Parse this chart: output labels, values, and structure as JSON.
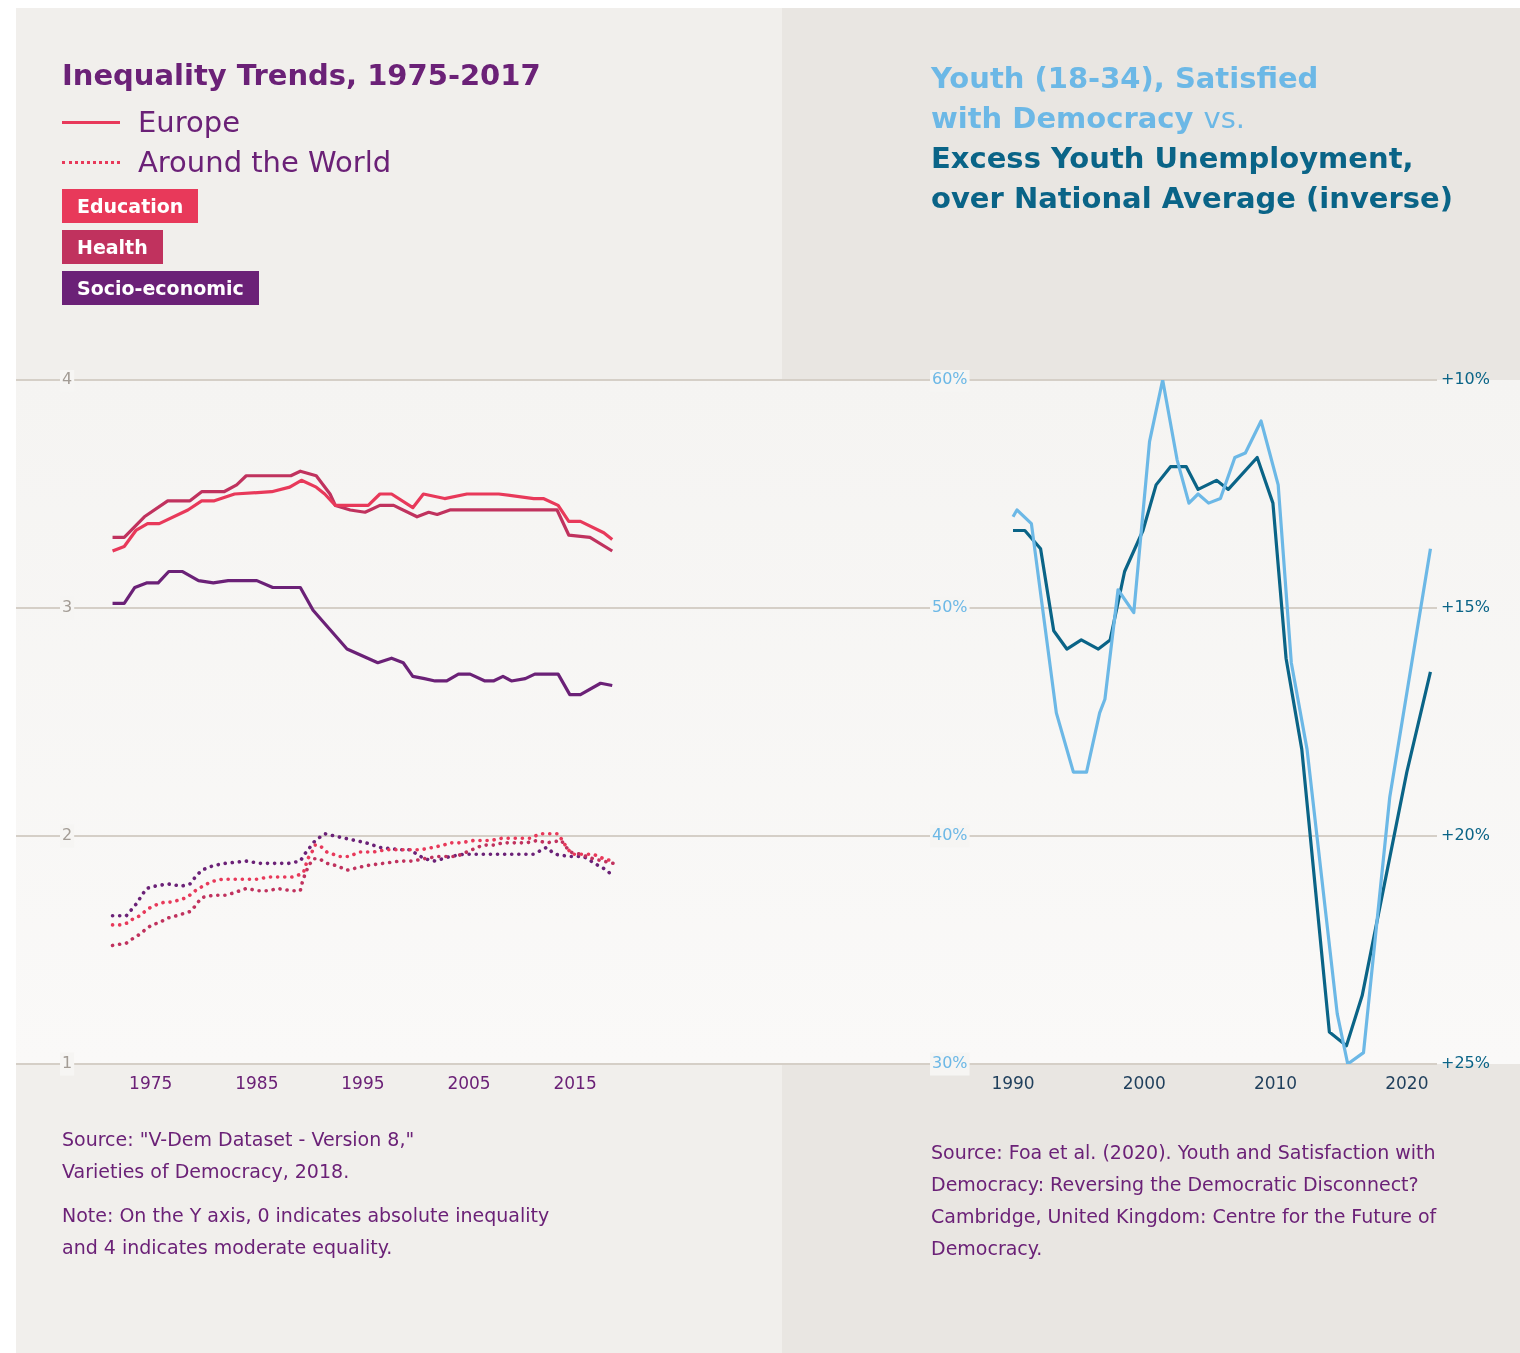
{
  "chart_data": [
    {
      "type": "line",
      "title": "Inequality Trends, 1975-2017",
      "xlim": [
        1962.3,
        2034.5
      ],
      "xticks": [
        1975,
        1985,
        1995,
        2005,
        2015
      ],
      "ylim": [
        1,
        4
      ],
      "yticks": [
        1,
        2,
        3,
        4
      ],
      "grid": "y",
      "legend": "top left",
      "series": [
        {
          "name": "Education",
          "color": "#e8395a",
          "line_style": "solid",
          "x": [
            1971.4,
            1972.5,
            1973.6,
            1974.7,
            1975.8,
            1978.5,
            1979.8,
            1981.0,
            1982.9,
            1986.4,
            1988.1,
            1989.2,
            1990.6,
            1991.4,
            1992.4,
            1995.5,
            1996.6,
            1997.7,
            1999.7,
            2000.7,
            2002.7,
            2004.8,
            2007.8,
            2011.1,
            2012.0,
            2013.4,
            2014.4,
            2015.5,
            2017.7,
            2018.5
          ],
          "values": [
            3.25,
            3.27,
            3.34,
            3.37,
            3.37,
            3.43,
            3.47,
            3.47,
            3.5,
            3.51,
            3.53,
            3.56,
            3.53,
            3.5,
            3.45,
            3.45,
            3.5,
            3.5,
            3.44,
            3.5,
            3.48,
            3.5,
            3.5,
            3.48,
            3.48,
            3.45,
            3.38,
            3.38,
            3.33,
            3.3
          ]
        },
        {
          "name": "Health",
          "color": "#c0325e",
          "line_style": "solid",
          "x": [
            1971.4,
            1972.5,
            1974.4,
            1976.6,
            1978.7,
            1979.8,
            1981.9,
            1983.1,
            1984.0,
            1988.2,
            1989.1,
            1990.6,
            1991.9,
            1992.4,
            1993.8,
            1995.2,
            1996.6,
            1997.9,
            2000.1,
            2001.2,
            2002.0,
            2003.2,
            2006.0,
            2013.3,
            2014.4,
            2016.4,
            2018.5
          ],
          "values": [
            3.31,
            3.31,
            3.4,
            3.47,
            3.47,
            3.51,
            3.51,
            3.54,
            3.58,
            3.58,
            3.6,
            3.58,
            3.5,
            3.45,
            3.43,
            3.42,
            3.45,
            3.45,
            3.4,
            3.42,
            3.41,
            3.43,
            3.43,
            3.43,
            3.32,
            3.31,
            3.25
          ]
        },
        {
          "name": "Socio-economic",
          "color": "#6b2177",
          "line_style": "solid",
          "x": [
            1971.4,
            1972.5,
            1973.5,
            1974.6,
            1975.7,
            1976.7,
            1978.0,
            1979.5,
            1980.9,
            1982.3,
            1985.0,
            1986.5,
            1989.1,
            1990.3,
            1993.5,
            1996.4,
            1997.7,
            1998.8,
            1999.7,
            2000.8,
            2001.8,
            2002.9,
            2004.0,
            2005.1,
            2006.5,
            2007.3,
            2008.2,
            2009.0,
            2010.3,
            2011.2,
            2013.4,
            2014.5,
            2015.5,
            2017.4,
            2018.5
          ],
          "values": [
            3.02,
            3.02,
            3.09,
            3.11,
            3.11,
            3.16,
            3.16,
            3.12,
            3.11,
            3.12,
            3.12,
            3.09,
            3.09,
            2.99,
            2.82,
            2.76,
            2.78,
            2.76,
            2.7,
            2.69,
            2.68,
            2.68,
            2.71,
            2.71,
            2.68,
            2.68,
            2.7,
            2.68,
            2.69,
            2.71,
            2.71,
            2.62,
            2.62,
            2.67,
            2.66
          ]
        },
        {
          "color": "#e8395a",
          "line_style": "dotted",
          "x": [
            1971.4,
            1972.2,
            1972.9,
            1973.4,
            1974.0,
            1974.7,
            1975.6,
            1976.3,
            1977.0,
            1977.7,
            1978.4,
            1979.2,
            1979.9,
            1980.7,
            1981.7,
            1984.0,
            1985.0,
            1986.1,
            1987.6,
            1988.3,
            1989.0,
            1989.4,
            1989.8,
            1990.2,
            1990.5,
            1990.9,
            1991.6,
            1992.8,
            1993.7,
            1994.7,
            1996.0,
            1997.2,
            1998.2,
            1999.7,
            2000.5,
            2001.6,
            2002.6,
            2003.2,
            2004.2,
            2005.4,
            2007.0,
            2008.1,
            2009.8,
            2010.8,
            2011.7,
            2013.4,
            2014.2,
            2014.7,
            2015.5,
            2016.7,
            2017.7,
            2018.6
          ],
          "values": [
            1.61,
            1.61,
            1.62,
            1.64,
            1.65,
            1.68,
            1.7,
            1.71,
            1.71,
            1.72,
            1.73,
            1.76,
            1.78,
            1.8,
            1.81,
            1.81,
            1.81,
            1.82,
            1.82,
            1.82,
            1.83,
            1.84,
            1.9,
            1.93,
            1.96,
            1.96,
            1.93,
            1.91,
            1.91,
            1.93,
            1.93,
            1.94,
            1.94,
            1.94,
            1.94,
            1.95,
            1.96,
            1.97,
            1.97,
            1.98,
            1.98,
            1.99,
            1.99,
            1.99,
            2.01,
            2.01,
            1.95,
            1.92,
            1.92,
            1.92,
            1.9,
            1.89
          ]
        },
        {
          "color": "#c0325e",
          "line_style": "dotted",
          "x": [
            1971.4,
            1972.7,
            1973.3,
            1974.0,
            1974.5,
            1975.1,
            1975.8,
            1976.6,
            1977.4,
            1978.1,
            1978.8,
            1979.3,
            1979.8,
            1980.9,
            1982.0,
            1982.8,
            1984.0,
            1985.1,
            1986.2,
            1986.9,
            1988.3,
            1989.1,
            1989.3,
            1989.6,
            1989.9,
            1990.3,
            1990.9,
            1991.6,
            1992.5,
            1993.5,
            1994.4,
            1995.3,
            1996.9,
            1998.5,
            1999.7,
            2000.7,
            2002.0,
            2002.9,
            2003.8,
            2005.3,
            2006.3,
            2007.3,
            2008.2,
            2009.5,
            2010.4,
            2011.4,
            2012.3,
            2013.7,
            2014.5,
            2015.5,
            2016.7,
            2018.6
          ],
          "values": [
            1.52,
            1.53,
            1.55,
            1.57,
            1.59,
            1.61,
            1.62,
            1.64,
            1.65,
            1.66,
            1.67,
            1.7,
            1.73,
            1.74,
            1.74,
            1.75,
            1.77,
            1.76,
            1.76,
            1.77,
            1.76,
            1.76,
            1.8,
            1.84,
            1.87,
            1.9,
            1.9,
            1.88,
            1.87,
            1.85,
            1.86,
            1.87,
            1.88,
            1.89,
            1.89,
            1.9,
            1.91,
            1.91,
            1.91,
            1.94,
            1.96,
            1.96,
            1.97,
            1.97,
            1.97,
            1.98,
            1.97,
            1.98,
            1.93,
            1.92,
            1.9,
            1.88
          ]
        },
        {
          "color": "#6b2177",
          "line_style": "dotted",
          "x": [
            1971.4,
            1972.7,
            1973.6,
            1974.6,
            1975.4,
            1976.6,
            1977.9,
            1978.7,
            1979.2,
            1979.8,
            1980.9,
            1982.0,
            1984.0,
            1985.3,
            1988.0,
            1989.1,
            1989.5,
            1990.5,
            1991.4,
            1993.3,
            1995.3,
            1996.6,
            1998.5,
            1999.4,
            2000.8,
            2001.8,
            2003.2,
            2004.5,
            2007.9,
            2011.1,
            2012.3,
            2013.1,
            2014.5,
            2015.8,
            2017.2,
            2018.0,
            2018.6
          ],
          "values": [
            1.65,
            1.65,
            1.7,
            1.77,
            1.78,
            1.79,
            1.78,
            1.79,
            1.82,
            1.85,
            1.87,
            1.88,
            1.89,
            1.88,
            1.88,
            1.89,
            1.92,
            1.98,
            2.01,
            1.99,
            1.97,
            1.95,
            1.94,
            1.94,
            1.9,
            1.89,
            1.91,
            1.92,
            1.92,
            1.92,
            1.95,
            1.92,
            1.91,
            1.91,
            1.87,
            1.85,
            1.82
          ]
        }
      ],
      "annotations": [
        "Europe",
        "Around the World",
        "Source: \"V-Dem Dataset - Version 8,\" Varieties of Democracy, 2018.",
        "Note: On the Y axis, 0 indicates absolute inequality and 4 indicates moderate equality."
      ]
    },
    {
      "type": "line",
      "title": "vs.",
      "xlim": [
        1972.4,
        2022.3
      ],
      "xticks": [
        1990,
        2000,
        2010,
        2020
      ],
      "ylim": [
        30,
        60
      ],
      "yticks": [
        {
          "value": 30,
          "label": "30%"
        },
        {
          "value": 40,
          "label": "40%"
        },
        {
          "value": 50,
          "label": "50%"
        },
        {
          "value": 60,
          "label": "60%"
        }
      ],
      "y2lim": [
        25,
        10
      ],
      "y2ticks": [
        {
          "value": 10,
          "label": "+10%"
        },
        {
          "value": 15,
          "label": "+15%"
        },
        {
          "value": 20,
          "label": "+20%"
        },
        {
          "value": 25,
          "label": "+25%"
        }
      ],
      "grid": "y",
      "legend": "top right",
      "series": [
        {
          "name": "Youth (18-34), Satisfied with Democracy",
          "color": "#6cb8e6",
          "x": [
            1990.0,
            1990.3,
            1991.4,
            1993.3,
            1994.6,
            1995.6,
            1996.6,
            1997.0,
            1998.0,
            1999.2,
            2000.4,
            2001.4,
            2002.5,
            2003.4,
            2004.1,
            2004.9,
            2005.8,
            2006.9,
            2007.7,
            2008.9,
            2010.2,
            2011.2,
            2012.4,
            2014.7,
            2015.5,
            2016.7,
            2018.7,
            2021.8
          ],
          "values": [
            54.0,
            54.3,
            53.7,
            45.4,
            42.8,
            42.8,
            45.4,
            46.0,
            50.8,
            49.8,
            57.3,
            60.0,
            56.5,
            54.6,
            55.0,
            54.6,
            54.8,
            56.6,
            56.8,
            58.2,
            55.4,
            47.6,
            43.8,
            32.2,
            30.0,
            30.5,
            41.7,
            52.6
          ]
        },
        {
          "name": "Excess Youth Unemployment, over National Average (inverse)",
          "color": "#0a6487",
          "axis": "y2",
          "x": [
            1990.0,
            1990.9,
            1992.1,
            1993.1,
            1994.1,
            1995.2,
            1996.5,
            1997.4,
            1998.5,
            1999.9,
            2000.9,
            2002.0,
            2003.2,
            2004.1,
            2005.5,
            2006.4,
            2008.6,
            2009.8,
            2010.8,
            2012.0,
            2014.1,
            2015.4,
            2016.6,
            2020.0,
            2021.8
          ],
          "values": [
            13.3,
            13.3,
            13.7,
            15.5,
            15.9,
            15.7,
            15.9,
            15.7,
            14.2,
            13.3,
            12.3,
            11.9,
            11.9,
            12.4,
            12.2,
            12.4,
            11.7,
            12.7,
            16.1,
            18.1,
            24.3,
            24.6,
            23.5,
            18.6,
            16.4
          ]
        }
      ],
      "annotations": [
        "Source: Foa et al. (2020). Youth and Satisfaction with Democracy: Reversing the Democratic Disconnect? Cambridge, United Kingdom: Centre for the Future of Democracy."
      ]
    }
  ]
}
